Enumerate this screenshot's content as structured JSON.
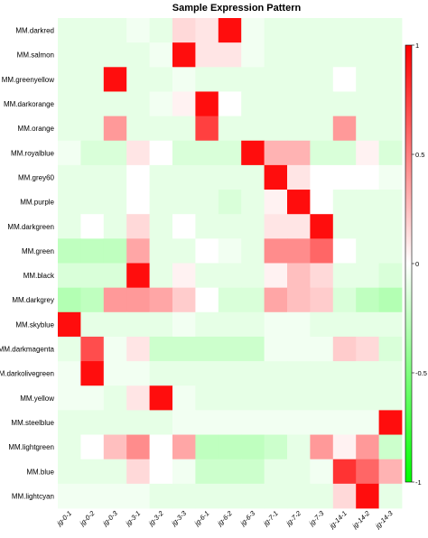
{
  "chart_data": {
    "type": "heatmap",
    "title": "Sample Expression Pattern",
    "xlabel": "",
    "ylabel": "",
    "color_range": [
      -1,
      1
    ],
    "colorbar_ticks": [
      "1",
      "0.5",
      "0",
      "-0.5",
      "-1"
    ],
    "colorbar_tick_values": [
      1,
      0.5,
      0,
      -0.5,
      -1
    ],
    "colors": {
      "low": "#00ff00",
      "mid": "#ffffff",
      "high": "#ff0000"
    },
    "columns": [
      "jg-0-1",
      "jg-0-2",
      "jg-0-3",
      "jg-3-1",
      "jg-3-2",
      "jg-3-3",
      "jg-6-1",
      "jg-6-2",
      "jg-6-3",
      "jg-7-1",
      "jg-7-2",
      "jg-7-3",
      "jg-14-1",
      "jg-14-2",
      "jg-14-3"
    ],
    "rows": [
      "MM.darkred",
      "MM.salmon",
      "MM.greenyellow",
      "MM.darkorange",
      "MM.orange",
      "MM.royalblue",
      "MM.grey60",
      "MM.purple",
      "MM.darkgreen",
      "MM.green",
      "MM.black",
      "MM.darkgrey",
      "MM.skyblue",
      "MM.darkmagenta",
      "MM.darkolivegreen",
      "MM.yellow",
      "MM.steelblue",
      "MM.lightgreen",
      "MM.blue",
      "MM.lightcyan"
    ],
    "values": [
      [
        -0.1,
        -0.1,
        -0.1,
        -0.05,
        -0.1,
        0.15,
        0.1,
        0.95,
        -0.05,
        -0.1,
        -0.1,
        -0.1,
        -0.1,
        -0.1,
        -0.1
      ],
      [
        -0.1,
        -0.1,
        -0.1,
        -0.1,
        -0.05,
        0.95,
        0.1,
        0.1,
        -0.05,
        -0.1,
        -0.1,
        -0.1,
        -0.1,
        -0.1,
        -0.1
      ],
      [
        -0.1,
        -0.1,
        0.95,
        -0.1,
        -0.1,
        -0.05,
        -0.1,
        -0.1,
        -0.1,
        -0.1,
        -0.1,
        -0.1,
        0.0,
        -0.1,
        -0.1
      ],
      [
        -0.1,
        -0.1,
        -0.1,
        -0.1,
        -0.05,
        0.05,
        0.95,
        0.0,
        -0.1,
        -0.1,
        -0.1,
        -0.1,
        -0.1,
        -0.1,
        -0.1
      ],
      [
        -0.1,
        -0.1,
        0.4,
        -0.1,
        -0.1,
        -0.1,
        0.75,
        -0.1,
        -0.1,
        -0.1,
        -0.1,
        -0.1,
        0.4,
        -0.1,
        -0.1
      ],
      [
        -0.05,
        -0.15,
        -0.15,
        0.1,
        0.0,
        -0.15,
        -0.15,
        -0.15,
        0.95,
        0.3,
        0.3,
        -0.15,
        -0.15,
        0.05,
        -0.15
      ],
      [
        -0.1,
        -0.1,
        -0.1,
        0.0,
        -0.1,
        -0.1,
        -0.1,
        -0.1,
        -0.1,
        0.95,
        0.1,
        0.0,
        0.0,
        0.0,
        -0.05
      ],
      [
        -0.1,
        -0.1,
        -0.1,
        0.0,
        -0.1,
        -0.1,
        -0.1,
        -0.15,
        -0.1,
        0.05,
        0.95,
        0.0,
        -0.1,
        -0.1,
        -0.1
      ],
      [
        -0.1,
        0.0,
        -0.1,
        0.15,
        -0.1,
        0.0,
        -0.1,
        -0.1,
        -0.1,
        0.1,
        0.1,
        0.95,
        -0.1,
        -0.1,
        -0.1
      ],
      [
        -0.25,
        -0.25,
        -0.25,
        0.35,
        -0.1,
        -0.1,
        0.0,
        -0.05,
        -0.1,
        0.45,
        0.45,
        0.6,
        0.0,
        -0.1,
        -0.1
      ],
      [
        -0.15,
        -0.15,
        -0.15,
        0.95,
        -0.1,
        0.05,
        -0.1,
        -0.1,
        -0.1,
        0.05,
        0.25,
        0.15,
        -0.1,
        -0.1,
        -0.15
      ],
      [
        -0.3,
        -0.25,
        0.4,
        0.4,
        0.35,
        0.2,
        0.0,
        -0.15,
        -0.15,
        0.35,
        0.25,
        0.2,
        -0.15,
        -0.25,
        -0.3
      ],
      [
        0.95,
        -0.1,
        -0.1,
        -0.1,
        -0.1,
        -0.05,
        -0.1,
        -0.1,
        -0.1,
        -0.05,
        -0.05,
        -0.1,
        -0.1,
        -0.1,
        -0.1
      ],
      [
        -0.1,
        0.7,
        -0.05,
        0.1,
        -0.2,
        -0.2,
        -0.2,
        -0.2,
        -0.2,
        -0.05,
        -0.05,
        -0.05,
        0.2,
        0.15,
        -0.15
      ],
      [
        -0.05,
        0.95,
        -0.05,
        -0.05,
        -0.1,
        -0.1,
        -0.1,
        -0.1,
        -0.1,
        -0.1,
        -0.1,
        -0.1,
        -0.1,
        -0.1,
        -0.1
      ],
      [
        -0.05,
        -0.05,
        -0.1,
        0.1,
        0.95,
        -0.05,
        -0.1,
        -0.1,
        -0.1,
        -0.1,
        -0.1,
        -0.1,
        -0.1,
        -0.1,
        -0.1
      ],
      [
        -0.1,
        -0.1,
        -0.1,
        -0.1,
        -0.1,
        -0.05,
        -0.05,
        -0.05,
        -0.05,
        -0.05,
        -0.05,
        -0.05,
        -0.05,
        -0.05,
        0.95
      ],
      [
        -0.1,
        0.0,
        0.25,
        0.45,
        0.0,
        0.35,
        -0.25,
        -0.25,
        -0.25,
        -0.2,
        -0.1,
        0.4,
        0.05,
        0.4,
        -0.2
      ],
      [
        -0.1,
        -0.1,
        -0.1,
        0.15,
        0.0,
        -0.05,
        -0.2,
        -0.2,
        -0.2,
        -0.1,
        -0.1,
        -0.05,
        0.8,
        0.6,
        0.3
      ],
      [
        -0.05,
        -0.05,
        -0.05,
        -0.05,
        -0.1,
        -0.1,
        -0.1,
        -0.1,
        -0.1,
        -0.1,
        -0.1,
        -0.1,
        0.15,
        0.95,
        -0.1
      ]
    ]
  }
}
